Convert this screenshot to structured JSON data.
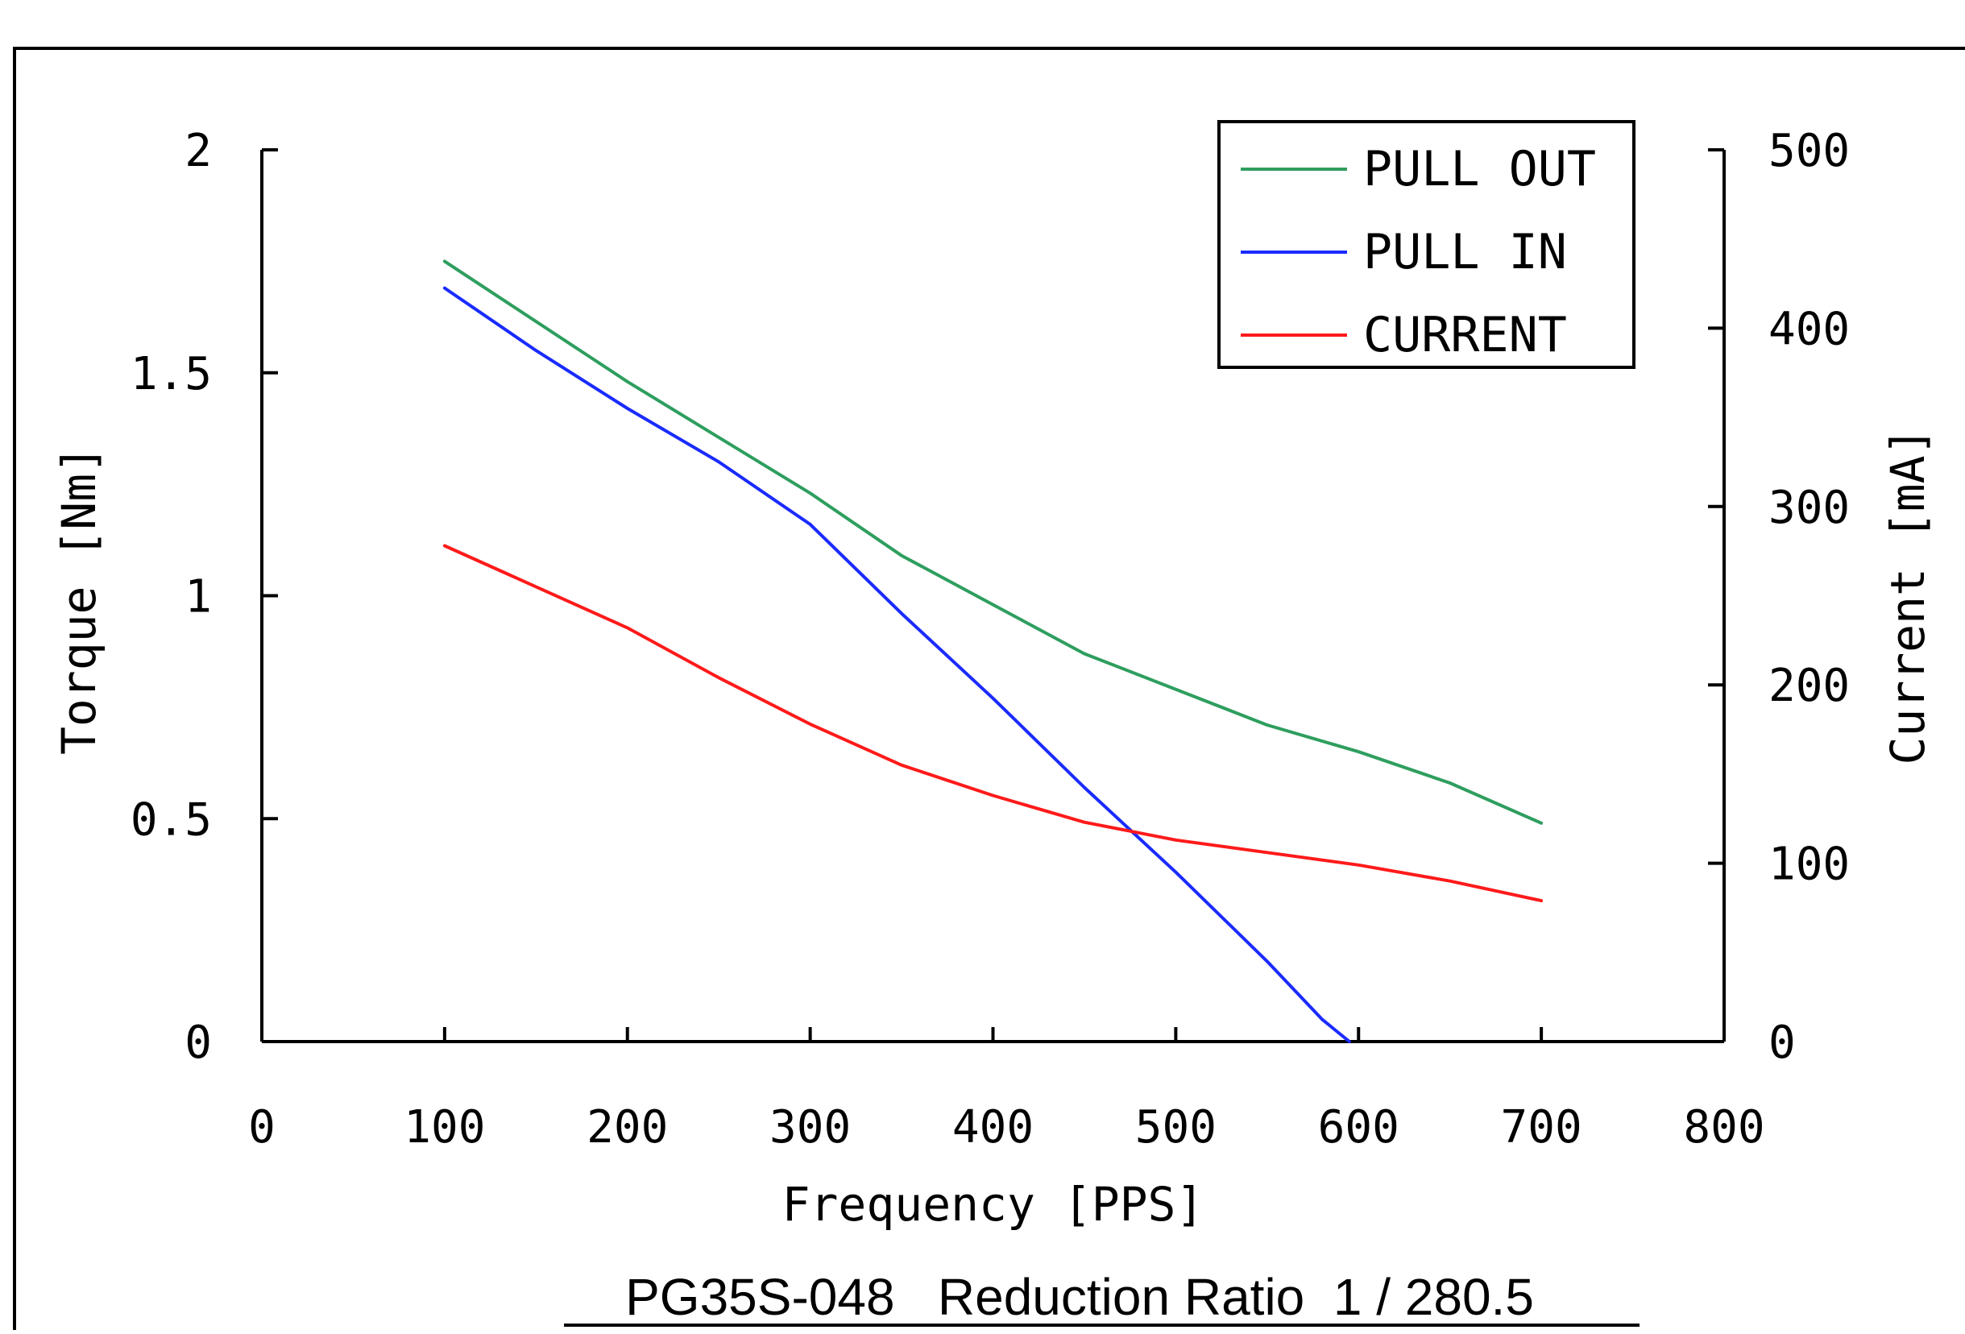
{
  "chart_data": {
    "type": "line",
    "title": "",
    "caption": "PG35S-048   Reduction Ratio  1 / 280.5",
    "xlabel": "Frequency [PPS]",
    "ylabel": "Torque [Nm]",
    "y2label": "Current [mA]",
    "xlim": [
      0,
      800
    ],
    "ylim": [
      0,
      2
    ],
    "y2lim": [
      0,
      500
    ],
    "x_ticks": [
      "0",
      "100",
      "200",
      "300",
      "400",
      "500",
      "600",
      "700",
      "800"
    ],
    "y_ticks": [
      "0",
      "0.5",
      "1",
      "1.5",
      "2"
    ],
    "y2_ticks": [
      "0",
      "100",
      "200",
      "300",
      "400",
      "500"
    ],
    "grid": false,
    "legend_position": "top-right",
    "series": [
      {
        "name": "PULL OUT",
        "axis": "left",
        "color": "#2e9e5e",
        "points": [
          [
            100,
            1.75
          ],
          [
            200,
            1.48
          ],
          [
            300,
            1.23
          ],
          [
            350,
            1.09
          ],
          [
            400,
            0.98
          ],
          [
            450,
            0.87
          ],
          [
            500,
            0.79
          ],
          [
            550,
            0.71
          ],
          [
            600,
            0.65
          ],
          [
            650,
            0.58
          ],
          [
            700,
            0.49
          ]
        ]
      },
      {
        "name": "PULL IN",
        "axis": "left",
        "color": "#1a2bff",
        "points": [
          [
            100,
            1.69
          ],
          [
            150,
            1.55
          ],
          [
            200,
            1.42
          ],
          [
            250,
            1.3
          ],
          [
            300,
            1.16
          ],
          [
            350,
            0.96
          ],
          [
            400,
            0.77
          ],
          [
            450,
            0.57
          ],
          [
            500,
            0.38
          ],
          [
            550,
            0.18
          ],
          [
            580,
            0.05
          ],
          [
            595,
            0.0
          ]
        ]
      },
      {
        "name": "CURRENT",
        "axis": "right",
        "color": "#ff1a1a",
        "points": [
          [
            100,
            278
          ],
          [
            150,
            255
          ],
          [
            200,
            232
          ],
          [
            250,
            204
          ],
          [
            300,
            178
          ],
          [
            350,
            155
          ],
          [
            400,
            138
          ],
          [
            450,
            123
          ],
          [
            500,
            113
          ],
          [
            550,
            106
          ],
          [
            600,
            99
          ],
          [
            650,
            90
          ],
          [
            700,
            79
          ]
        ]
      }
    ]
  }
}
